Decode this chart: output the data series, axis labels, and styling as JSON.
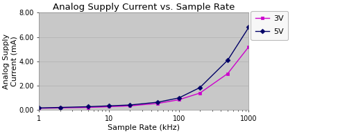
{
  "title": "Analog Supply Current vs. Sample Rate",
  "xlabel": "Sample Rate (kHz)",
  "ylabel": "Analog Supply\nCurrent (mA)",
  "series": [
    {
      "label": "3V",
      "color": "#cc00cc",
      "marker": "s",
      "x": [
        1,
        2,
        5,
        10,
        20,
        50,
        100,
        200,
        500,
        1000
      ],
      "y": [
        0.15,
        0.18,
        0.22,
        0.28,
        0.35,
        0.55,
        0.85,
        1.4,
        3.0,
        5.2
      ]
    },
    {
      "label": "5V",
      "color": "#000066",
      "marker": "D",
      "x": [
        1,
        2,
        5,
        10,
        20,
        50,
        100,
        200,
        500,
        1000
      ],
      "y": [
        0.18,
        0.22,
        0.28,
        0.35,
        0.42,
        0.65,
        1.0,
        1.85,
        4.1,
        6.8
      ]
    }
  ],
  "xlim": [
    1,
    1000
  ],
  "ylim": [
    0.0,
    8.0
  ],
  "yticks": [
    0.0,
    2.0,
    4.0,
    6.0,
    8.0
  ],
  "ytick_labels": [
    "0.00",
    "2.00",
    "4.00",
    "6.00",
    "8.00"
  ],
  "xticks": [
    1,
    10,
    100,
    1000
  ],
  "plot_bg": "#c8c8c8",
  "outer_bg": "#ffffff",
  "legend_bg": "#f5f5f5",
  "legend_edge": "#aaaaaa",
  "title_fontsize": 9.5,
  "label_fontsize": 8,
  "tick_fontsize": 7,
  "grid_color": "#b0b0b0",
  "spine_color": "#888888"
}
